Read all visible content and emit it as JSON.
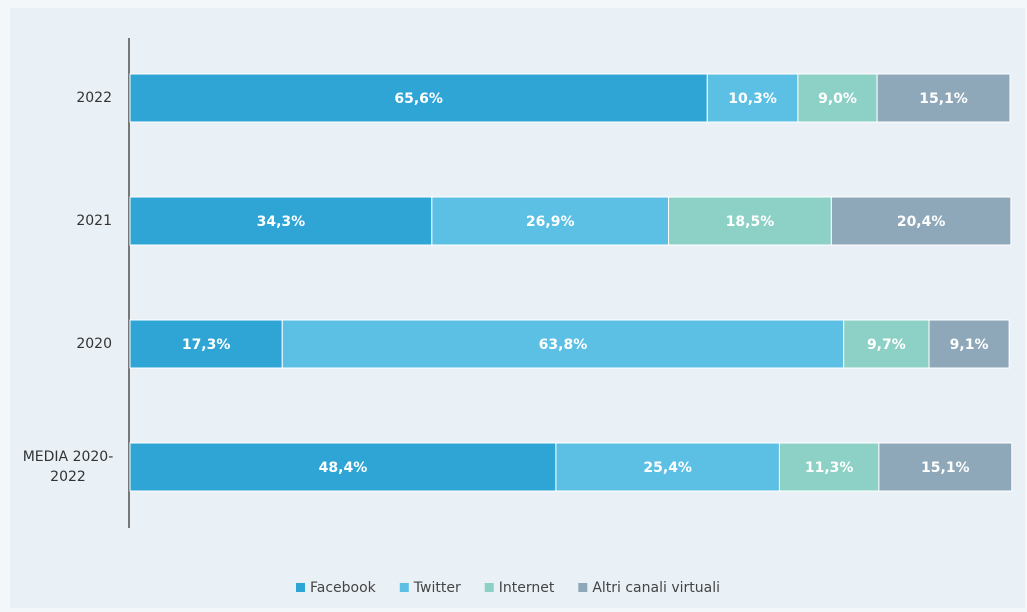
{
  "chart_data": {
    "type": "stacked-bar-horizontal",
    "categories": [
      "2022",
      "2021",
      "2020",
      "MEDIA 2020-2022"
    ],
    "xlim": [
      0,
      100
    ],
    "series": [
      {
        "name": "Facebook",
        "color": "#2ea5d5",
        "values": [
          65.6,
          34.3,
          17.3,
          48.4
        ],
        "value_labels": [
          "65,6%",
          "34,3%",
          "17,3%",
          "48,4%"
        ]
      },
      {
        "name": "Twitter",
        "color": "#5cc0e4",
        "values": [
          10.3,
          26.9,
          63.8,
          25.4
        ],
        "value_labels": [
          "10,3%",
          "26,9%",
          "63,8%",
          "25,4%"
        ]
      },
      {
        "name": "Internet",
        "color": "#8dd0c5",
        "values": [
          9.0,
          18.5,
          9.7,
          11.3
        ],
        "value_labels": [
          "9,0%",
          "18,5%",
          "9,7%",
          "11,3%"
        ]
      },
      {
        "name": "Altri canali virtuali",
        "color": "#8ea7b9",
        "values": [
          15.1,
          20.4,
          9.1,
          15.1
        ],
        "value_labels": [
          "15,1%",
          "20,4%",
          "9,1%",
          "15,1%"
        ]
      }
    ]
  }
}
